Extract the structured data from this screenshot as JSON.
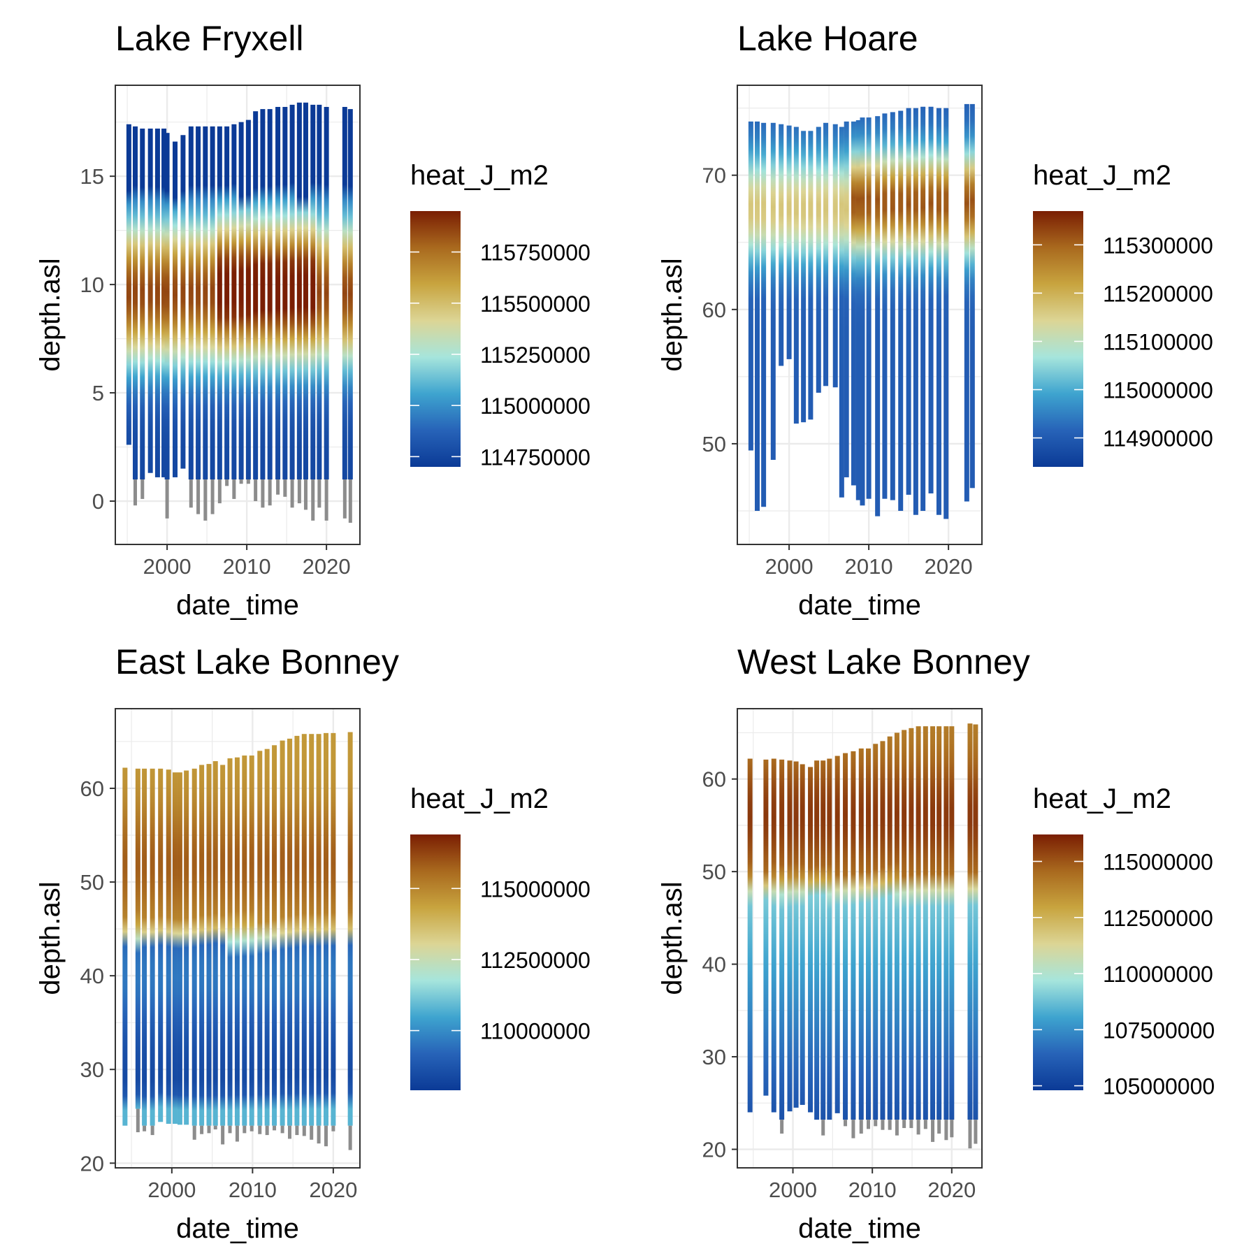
{
  "colors": {
    "heat_scale": [
      "#0b3a96",
      "#2763b8",
      "#3ea4cf",
      "#a6e5dc",
      "#dcd595",
      "#c8a43f",
      "#a9691e",
      "#7a1e03"
    ],
    "na_value": "#8c8c8c",
    "grid": "#ebebeb",
    "panel_border": "#333333"
  },
  "chart_data": [
    {
      "type": "heatmap",
      "title": "Lake Fryxell",
      "xlabel": "date_time",
      "ylabel": "depth.asl",
      "xlim": [
        1993.5,
        2024.2
      ],
      "ylim": [
        -2.0,
        19.2
      ],
      "xticks": [
        2000,
        2010,
        2020
      ],
      "yticks": [
        0,
        5,
        10,
        15
      ],
      "legend_title": "heat_J_m2",
      "legend_range": [
        114700000,
        115950000
      ],
      "legend_breaks": [
        115750000,
        115500000,
        115250000,
        115000000,
        114750000
      ],
      "grid": true,
      "columns": [
        {
          "x": 1995.2,
          "top": 17.4,
          "bottom": 2.6,
          "na_bottom": 2.6
        },
        {
          "x": 1996.0,
          "top": 17.3,
          "bottom": 1.0,
          "na_bottom": -0.2
        },
        {
          "x": 1996.9,
          "top": 17.2,
          "bottom": 1.0,
          "na_bottom": 0.1
        },
        {
          "x": 1997.9,
          "top": 17.2,
          "bottom": 1.3,
          "na_bottom": 1.3
        },
        {
          "x": 1998.8,
          "top": 17.2,
          "bottom": 1.1,
          "na_bottom": 1.1
        },
        {
          "x": 1999.6,
          "top": 17.2,
          "bottom": 1.1,
          "na_bottom": 1.1
        },
        {
          "x": 2000.0,
          "top": 17.0,
          "bottom": 1.0,
          "na_bottom": -0.8
        },
        {
          "x": 2001.0,
          "top": 16.6,
          "bottom": 1.1,
          "na_bottom": 1.1
        },
        {
          "x": 2002.0,
          "top": 16.9,
          "bottom": 1.5,
          "na_bottom": 1.5
        },
        {
          "x": 2003.0,
          "top": 17.3,
          "bottom": 1.0,
          "na_bottom": -0.3
        },
        {
          "x": 2003.9,
          "top": 17.3,
          "bottom": 1.0,
          "na_bottom": -0.6
        },
        {
          "x": 2004.8,
          "top": 17.3,
          "bottom": 1.0,
          "na_bottom": -0.9
        },
        {
          "x": 2005.7,
          "top": 17.3,
          "bottom": 1.0,
          "na_bottom": -0.6
        },
        {
          "x": 2006.6,
          "top": 17.3,
          "bottom": 1.0,
          "na_bottom": -0.1
        },
        {
          "x": 2007.5,
          "top": 17.3,
          "bottom": 1.0,
          "na_bottom": 0.7
        },
        {
          "x": 2008.4,
          "top": 17.4,
          "bottom": 1.0,
          "na_bottom": 0.1
        },
        {
          "x": 2009.3,
          "top": 17.5,
          "bottom": 1.0,
          "na_bottom": 0.8
        },
        {
          "x": 2010.2,
          "top": 17.6,
          "bottom": 1.0,
          "na_bottom": 0.8
        },
        {
          "x": 2011.1,
          "top": 18.0,
          "bottom": 1.0,
          "na_bottom": 0.0
        },
        {
          "x": 2012.0,
          "top": 18.1,
          "bottom": 1.0,
          "na_bottom": -0.3
        },
        {
          "x": 2012.9,
          "top": 18.1,
          "bottom": 1.0,
          "na_bottom": -0.2
        },
        {
          "x": 2013.9,
          "top": 18.2,
          "bottom": 1.0,
          "na_bottom": 0.3
        },
        {
          "x": 2014.8,
          "top": 18.2,
          "bottom": 1.0,
          "na_bottom": 0.2
        },
        {
          "x": 2015.7,
          "top": 18.3,
          "bottom": 1.0,
          "na_bottom": -0.3
        },
        {
          "x": 2016.6,
          "top": 18.4,
          "bottom": 1.0,
          "na_bottom": -0.1
        },
        {
          "x": 2017.4,
          "top": 18.4,
          "bottom": 1.0,
          "na_bottom": -0.4
        },
        {
          "x": 2018.3,
          "top": 18.3,
          "bottom": 1.0,
          "na_bottom": -0.9
        },
        {
          "x": 2019.1,
          "top": 18.3,
          "bottom": 1.0,
          "na_bottom": -0.3
        },
        {
          "x": 2020.0,
          "top": 18.2,
          "bottom": 1.0,
          "na_bottom": -0.9
        },
        {
          "x": 2022.3,
          "top": 18.2,
          "bottom": 1.0,
          "na_bottom": -0.8
        },
        {
          "x": 2023.0,
          "top": 18.1,
          "bottom": 1.0,
          "na_bottom": -1.0
        }
      ]
    },
    {
      "type": "heatmap",
      "title": "Lake Hoare",
      "xlabel": "date_time",
      "ylabel": "depth.asl",
      "xlim": [
        1993.5,
        2024.2
      ],
      "ylim": [
        42.5,
        76.7
      ],
      "xticks": [
        2000,
        2010,
        2020
      ],
      "yticks": [
        50,
        60,
        70
      ],
      "legend_title": "heat_J_m2",
      "legend_range": [
        114840000,
        115370000
      ],
      "legend_breaks": [
        115300000,
        115200000,
        115100000,
        115000000,
        114900000
      ],
      "grid": true,
      "columns": [
        {
          "x": 1995.2,
          "top": 74.0,
          "bottom": 49.5
        },
        {
          "x": 1996.0,
          "top": 74.0,
          "bottom": 45.0
        },
        {
          "x": 1996.8,
          "top": 73.9,
          "bottom": 45.3
        },
        {
          "x": 1998.0,
          "top": 73.9,
          "bottom": 48.8
        },
        {
          "x": 1999.0,
          "top": 73.8,
          "bottom": 55.8
        },
        {
          "x": 2000.0,
          "top": 73.7,
          "bottom": 56.3
        },
        {
          "x": 2000.9,
          "top": 73.6,
          "bottom": 51.5
        },
        {
          "x": 2001.8,
          "top": 73.3,
          "bottom": 51.6
        },
        {
          "x": 2002.7,
          "top": 73.3,
          "bottom": 51.8
        },
        {
          "x": 2003.7,
          "top": 73.6,
          "bottom": 53.8
        },
        {
          "x": 2004.6,
          "top": 73.9,
          "bottom": 54.3
        },
        {
          "x": 2005.8,
          "top": 73.8,
          "bottom": 54.2
        },
        {
          "x": 2006.6,
          "top": 73.6,
          "bottom": 46.0
        },
        {
          "x": 2007.2,
          "top": 74.0,
          "bottom": 47.5
        },
        {
          "x": 2008.1,
          "top": 74.0,
          "bottom": 46.9
        },
        {
          "x": 2008.7,
          "top": 74.1,
          "bottom": 45.8
        },
        {
          "x": 2009.2,
          "top": 74.3,
          "bottom": 45.4
        },
        {
          "x": 2010.0,
          "top": 74.3,
          "bottom": 45.9
        },
        {
          "x": 2011.1,
          "top": 74.4,
          "bottom": 44.6
        },
        {
          "x": 2012.0,
          "top": 74.6,
          "bottom": 45.9
        },
        {
          "x": 2013.0,
          "top": 74.7,
          "bottom": 45.8
        },
        {
          "x": 2014.0,
          "top": 74.8,
          "bottom": 45.0
        },
        {
          "x": 2015.0,
          "top": 75.0,
          "bottom": 46.2
        },
        {
          "x": 2015.9,
          "top": 75.0,
          "bottom": 44.7
        },
        {
          "x": 2016.8,
          "top": 75.1,
          "bottom": 45.0
        },
        {
          "x": 2017.8,
          "top": 75.1,
          "bottom": 46.3
        },
        {
          "x": 2018.8,
          "top": 75.0,
          "bottom": 44.7
        },
        {
          "x": 2019.7,
          "top": 75.0,
          "bottom": 44.4
        },
        {
          "x": 2022.3,
          "top": 75.3,
          "bottom": 45.7
        },
        {
          "x": 2023.0,
          "top": 75.3,
          "bottom": 46.7
        }
      ]
    },
    {
      "type": "heatmap",
      "title": "East Lake Bonney",
      "xlabel": "date_time",
      "ylabel": "depth.asl",
      "xlim": [
        1993.0,
        2023.3
      ],
      "ylim": [
        19.5,
        68.5
      ],
      "xticks": [
        2000,
        2010,
        2020
      ],
      "yticks": [
        20,
        30,
        40,
        50,
        60
      ],
      "legend_title": "heat_J_m2",
      "legend_range": [
        107900000,
        116900000
      ],
      "legend_breaks": [
        115000000,
        112500000,
        110000000
      ],
      "grid": true,
      "columns": [
        {
          "x": 1994.2,
          "top": 62.2,
          "bottom": 24.0,
          "na_bottom": 24.0
        },
        {
          "x": 1995.8,
          "top": 62.1,
          "bottom": 25.8,
          "na_bottom": 23.3
        },
        {
          "x": 1996.6,
          "top": 62.1,
          "bottom": 24.0,
          "na_bottom": 23.4
        },
        {
          "x": 1997.6,
          "top": 62.1,
          "bottom": 24.0,
          "na_bottom": 23.0
        },
        {
          "x": 1998.6,
          "top": 62.1,
          "bottom": 24.4,
          "na_bottom": 24.4
        },
        {
          "x": 1999.6,
          "top": 62.0,
          "bottom": 24.2,
          "na_bottom": 24.2
        },
        {
          "x": 2000.4,
          "top": 61.7,
          "bottom": 24.2,
          "na_bottom": 24.2
        },
        {
          "x": 2001.0,
          "top": 61.7,
          "bottom": 24.1,
          "na_bottom": 24.1
        },
        {
          "x": 2001.8,
          "top": 61.9,
          "bottom": 24.1,
          "na_bottom": 24.1
        },
        {
          "x": 2002.8,
          "top": 62.1,
          "bottom": 24.0,
          "na_bottom": 22.5
        },
        {
          "x": 2003.7,
          "top": 62.5,
          "bottom": 24.0,
          "na_bottom": 23.1
        },
        {
          "x": 2004.6,
          "top": 62.6,
          "bottom": 24.0,
          "na_bottom": 23.2
        },
        {
          "x": 2005.4,
          "top": 62.9,
          "bottom": 24.0,
          "na_bottom": 23.6
        },
        {
          "x": 2006.3,
          "top": 62.5,
          "bottom": 24.0,
          "na_bottom": 22.0
        },
        {
          "x": 2007.2,
          "top": 63.2,
          "bottom": 24.0,
          "na_bottom": 23.2
        },
        {
          "x": 2008.1,
          "top": 63.3,
          "bottom": 24.0,
          "na_bottom": 22.3
        },
        {
          "x": 2009.0,
          "top": 63.5,
          "bottom": 24.0,
          "na_bottom": 23.2
        },
        {
          "x": 2009.9,
          "top": 63.5,
          "bottom": 24.0,
          "na_bottom": 23.4
        },
        {
          "x": 2010.9,
          "top": 64.0,
          "bottom": 24.0,
          "na_bottom": 23.1
        },
        {
          "x": 2011.8,
          "top": 64.2,
          "bottom": 24.0,
          "na_bottom": 23.0
        },
        {
          "x": 2012.7,
          "top": 64.6,
          "bottom": 24.0,
          "na_bottom": 23.5
        },
        {
          "x": 2013.7,
          "top": 65.1,
          "bottom": 24.0,
          "na_bottom": 23.2
        },
        {
          "x": 2014.6,
          "top": 65.3,
          "bottom": 24.0,
          "na_bottom": 22.6
        },
        {
          "x": 2015.5,
          "top": 65.6,
          "bottom": 24.0,
          "na_bottom": 23.0
        },
        {
          "x": 2016.4,
          "top": 65.8,
          "bottom": 24.0,
          "na_bottom": 22.9
        },
        {
          "x": 2017.3,
          "top": 65.8,
          "bottom": 24.0,
          "na_bottom": 22.5
        },
        {
          "x": 2018.2,
          "top": 65.8,
          "bottom": 24.0,
          "na_bottom": 22.1
        },
        {
          "x": 2019.1,
          "top": 65.9,
          "bottom": 24.0,
          "na_bottom": 21.8
        },
        {
          "x": 2020.0,
          "top": 65.9,
          "bottom": 24.0,
          "na_bottom": 23.4
        },
        {
          "x": 2022.1,
          "top": 66.0,
          "bottom": 24.0,
          "na_bottom": 21.4
        }
      ]
    },
    {
      "type": "heatmap",
      "title": "West Lake Bonney",
      "xlabel": "date_time",
      "ylabel": "depth.asl",
      "xlim": [
        1993.0,
        2023.8
      ],
      "ylim": [
        18.0,
        67.6
      ],
      "xticks": [
        2000,
        2010,
        2020
      ],
      "yticks": [
        20,
        30,
        40,
        50,
        60
      ],
      "legend_title": "heat_J_m2",
      "legend_range": [
        104800000,
        116200000
      ],
      "legend_breaks": [
        115000000,
        112500000,
        110000000,
        107500000,
        105000000
      ],
      "grid": true,
      "columns": [
        {
          "x": 1994.6,
          "top": 62.2,
          "bottom": 24.0,
          "na_bottom": 24.0
        },
        {
          "x": 1996.6,
          "top": 62.1,
          "bottom": 25.8,
          "na_bottom": 25.8
        },
        {
          "x": 1997.6,
          "top": 62.2,
          "bottom": 24.0,
          "na_bottom": 24.0
        },
        {
          "x": 1998.6,
          "top": 62.1,
          "bottom": 23.2,
          "na_bottom": 21.7
        },
        {
          "x": 1999.6,
          "top": 62.0,
          "bottom": 24.1,
          "na_bottom": 24.1
        },
        {
          "x": 2000.4,
          "top": 61.9,
          "bottom": 24.5,
          "na_bottom": 24.5
        },
        {
          "x": 2001.2,
          "top": 61.6,
          "bottom": 24.8,
          "na_bottom": 24.8
        },
        {
          "x": 2002.2,
          "top": 61.3,
          "bottom": 24.0,
          "na_bottom": 24.0
        },
        {
          "x": 2003.0,
          "top": 62.0,
          "bottom": 23.2,
          "na_bottom": 23.2
        },
        {
          "x": 2003.8,
          "top": 62.0,
          "bottom": 23.2,
          "na_bottom": 21.5
        },
        {
          "x": 2004.6,
          "top": 62.2,
          "bottom": 23.2,
          "na_bottom": 23.2
        },
        {
          "x": 2005.6,
          "top": 62.5,
          "bottom": 23.9,
          "na_bottom": 23.9
        },
        {
          "x": 2006.6,
          "top": 62.8,
          "bottom": 23.2,
          "na_bottom": 22.5
        },
        {
          "x": 2007.6,
          "top": 63.0,
          "bottom": 23.2,
          "na_bottom": 21.2
        },
        {
          "x": 2008.6,
          "top": 63.3,
          "bottom": 23.2,
          "na_bottom": 21.7
        },
        {
          "x": 2009.5,
          "top": 63.3,
          "bottom": 23.2,
          "na_bottom": 22.2
        },
        {
          "x": 2010.4,
          "top": 63.8,
          "bottom": 23.2,
          "na_bottom": 22.5
        },
        {
          "x": 2011.3,
          "top": 64.1,
          "bottom": 23.2,
          "na_bottom": 22.1
        },
        {
          "x": 2012.2,
          "top": 64.6,
          "bottom": 23.2,
          "na_bottom": 22.1
        },
        {
          "x": 2013.1,
          "top": 65.0,
          "bottom": 23.2,
          "na_bottom": 21.5
        },
        {
          "x": 2014.0,
          "top": 65.3,
          "bottom": 23.2,
          "na_bottom": 22.3
        },
        {
          "x": 2014.9,
          "top": 65.5,
          "bottom": 23.2,
          "na_bottom": 22.3
        },
        {
          "x": 2015.8,
          "top": 65.7,
          "bottom": 23.2,
          "na_bottom": 21.6
        },
        {
          "x": 2016.7,
          "top": 65.7,
          "bottom": 23.2,
          "na_bottom": 22.2
        },
        {
          "x": 2017.6,
          "top": 65.7,
          "bottom": 23.2,
          "na_bottom": 20.8
        },
        {
          "x": 2018.4,
          "top": 65.7,
          "bottom": 23.2,
          "na_bottom": 21.7
        },
        {
          "x": 2019.3,
          "top": 65.7,
          "bottom": 23.2,
          "na_bottom": 21.0
        },
        {
          "x": 2020.0,
          "top": 65.7,
          "bottom": 23.2,
          "na_bottom": 21.3
        },
        {
          "x": 2022.3,
          "top": 66.0,
          "bottom": 23.2,
          "na_bottom": 20.1
        },
        {
          "x": 2023.0,
          "top": 65.9,
          "bottom": 23.2,
          "na_bottom": 20.6
        }
      ]
    }
  ]
}
